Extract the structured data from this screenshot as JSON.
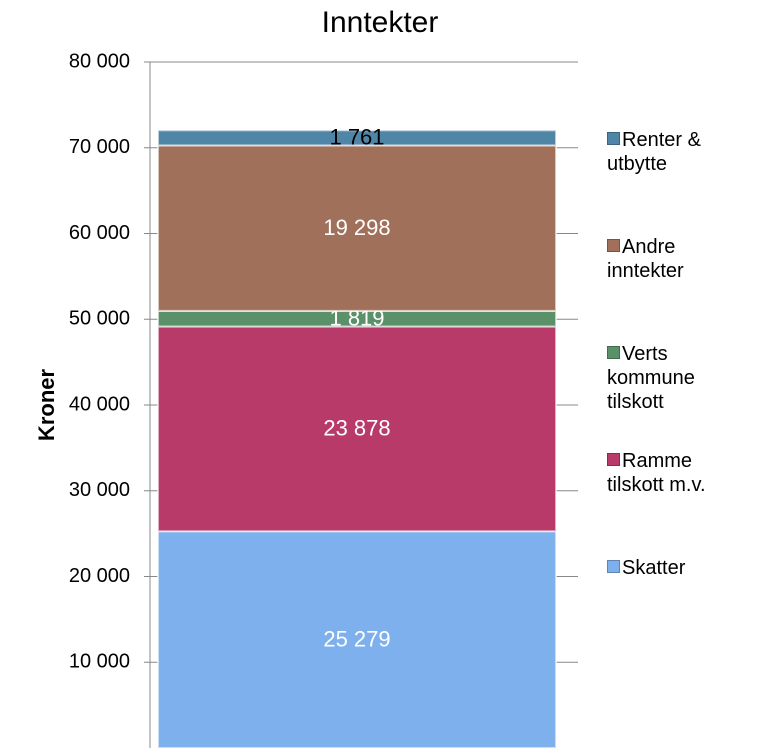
{
  "chart_data": {
    "type": "stacked_bar",
    "title": "Inntekter",
    "y_label": "Kroner",
    "categories": [
      null
    ],
    "series": [
      {
        "name": "Skatter",
        "color": "#7fb0ee",
        "label_color": "#ffffff",
        "values": [
          25279
        ],
        "value_labels": [
          "25 279"
        ]
      },
      {
        "name": "Ramme tilskott m.v.",
        "color": "#b83a68",
        "label_color": "#ffffff",
        "values": [
          23878
        ],
        "value_labels": [
          "23 878"
        ]
      },
      {
        "name": "Verts kommune tilskott",
        "color": "#5a9168",
        "label_color": "#ffffff",
        "values": [
          1819
        ],
        "value_labels": [
          "1 819"
        ]
      },
      {
        "name": "Andre inntekter",
        "color": "#a0705a",
        "label_color": "#ffffff",
        "values": [
          19298
        ],
        "value_labels": [
          "19 298"
        ]
      },
      {
        "name": "Renter & utbytte",
        "color": "#4f86a8",
        "label_color": "#000000",
        "values": [
          1761
        ],
        "value_labels": [
          "1 761"
        ]
      }
    ],
    "ylim": [
      0,
      80000
    ],
    "yticks": [
      {
        "value": 10000,
        "label": "10 000"
      },
      {
        "value": 20000,
        "label": "20 000"
      },
      {
        "value": 30000,
        "label": "30 000"
      },
      {
        "value": 40000,
        "label": "40 000"
      },
      {
        "value": 50000,
        "label": "50 000"
      },
      {
        "value": 60000,
        "label": "60 000"
      },
      {
        "value": 70000,
        "label": "70 000"
      },
      {
        "value": 80000,
        "label": "80 000"
      }
    ],
    "grid": true,
    "legend": "right"
  }
}
